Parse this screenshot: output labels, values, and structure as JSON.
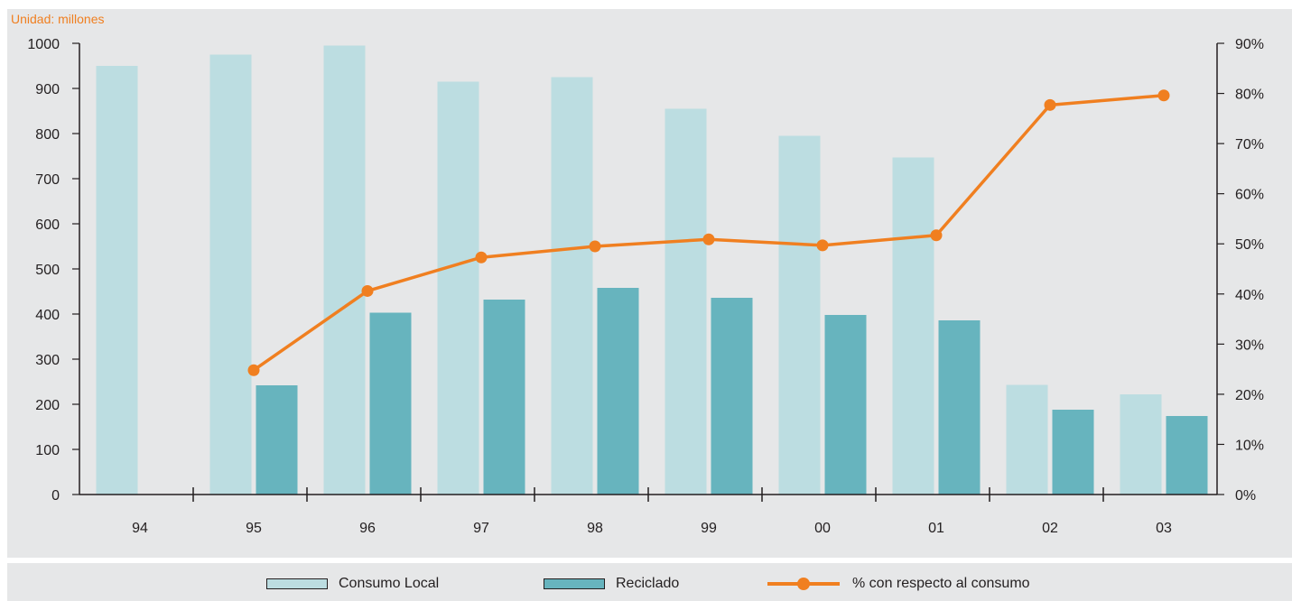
{
  "unit_note": "Unidad: millones",
  "colors": {
    "consumo": "#bcdde1",
    "reciclado": "#67b4be",
    "porcentaje": "#f07f20",
    "axis": "#231f20",
    "background": "#e6e7e8"
  },
  "legend": {
    "consumo": "Consumo Local",
    "reciclado": "Reciclado",
    "porcentaje": "% con respecto al consumo"
  },
  "chart_data": {
    "type": "bar",
    "categories": [
      "94",
      "95",
      "96",
      "97",
      "98",
      "99",
      "00",
      "01",
      "02",
      "03"
    ],
    "series": [
      {
        "name": "Consumo Local",
        "type": "bar",
        "axis": "left",
        "values": [
          950,
          975,
          995,
          915,
          925,
          855,
          795,
          747,
          243,
          222
        ]
      },
      {
        "name": "Reciclado",
        "type": "bar",
        "axis": "left",
        "values": [
          null,
          242,
          403,
          432,
          458,
          436,
          398,
          386,
          188,
          174
        ]
      },
      {
        "name": "% con respecto al consumo",
        "type": "line",
        "axis": "right",
        "values": [
          null,
          24.8,
          40.6,
          47.3,
          49.5,
          50.9,
          49.7,
          51.7,
          77.7,
          79.6
        ]
      }
    ],
    "y_left": {
      "min": 0,
      "max": 1000,
      "ticks": [
        "0",
        "100",
        "200",
        "300",
        "400",
        "500",
        "600",
        "700",
        "800",
        "900",
        "1000"
      ]
    },
    "y_right": {
      "min": 0,
      "max": 90,
      "ticks": [
        "0%",
        "10%",
        "20%",
        "30%",
        "40%",
        "50%",
        "60%",
        "70%",
        "80%",
        "90%"
      ]
    },
    "grid": false,
    "legend_position": "bottom"
  }
}
